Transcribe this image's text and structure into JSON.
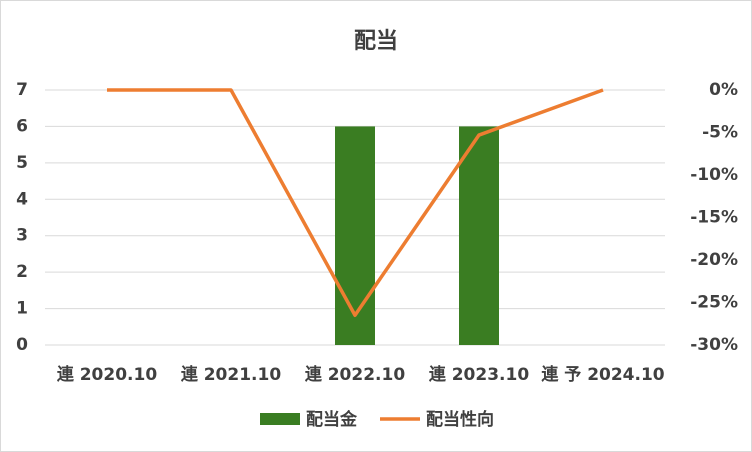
{
  "chart_data": {
    "type": "bar-line",
    "title": "配当",
    "categories": [
      "連 2020.10",
      "連 2021.10",
      "連 2022.10",
      "連 2023.10",
      "連 予 2024.10"
    ],
    "series": [
      {
        "name": "配当金",
        "color": "#3a7d22",
        "type": "bar",
        "values": [
          null,
          null,
          6,
          6,
          null
        ]
      },
      {
        "name": "配当性向",
        "color": "#ed7d31",
        "type": "line",
        "axis": "y2",
        "values": [
          0,
          0,
          -26.5,
          -5.3,
          0
        ]
      }
    ],
    "ylim": [
      0,
      7
    ],
    "yticks": [
      0,
      1,
      2,
      3,
      4,
      5,
      6,
      7
    ],
    "y2lim": [
      -30,
      0
    ],
    "y2ticks": [
      {
        "value": 0,
        "label": "0%"
      },
      {
        "value": -5,
        "label": "-5%"
      },
      {
        "value": -10,
        "label": "-10%"
      },
      {
        "value": -15,
        "label": "-15%"
      },
      {
        "value": -20,
        "label": "-20%"
      },
      {
        "value": -25,
        "label": "-25%"
      },
      {
        "value": -30,
        "label": "-30%"
      }
    ],
    "grid": true,
    "legend": "bottom"
  }
}
